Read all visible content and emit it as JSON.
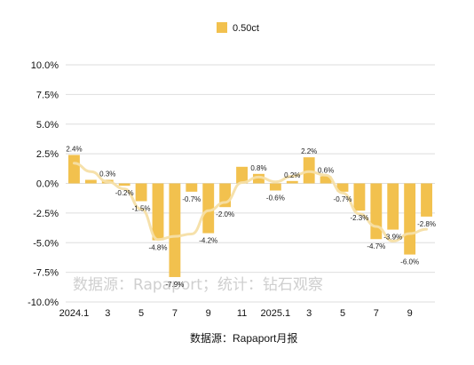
{
  "chart_data": {
    "type": "bar",
    "series": [
      {
        "name": "0.50ct",
        "color": "#f2c14e",
        "values": [
          2.4,
          0.3,
          0.3,
          -0.2,
          -1.5,
          -4.8,
          -7.9,
          -0.7,
          -4.2,
          -2.0,
          1.4,
          0.8,
          -0.6,
          0.2,
          2.2,
          0.6,
          -0.7,
          -2.3,
          -4.7,
          -3.9,
          -6.0,
          -2.8
        ],
        "labels": [
          "2.4%",
          "",
          "0.3%",
          "-0.2%",
          "-1.5%",
          "-4.8%",
          "-7.9%",
          "-0.7%",
          "-4.2%",
          "-2.0%",
          "",
          "0.8%",
          "-0.6%",
          "0.2%",
          "2.2%",
          "0.6%",
          "-0.7%",
          "-2.3%",
          "-4.7%",
          "-3.9%",
          "-6.0%",
          "-2.8%"
        ]
      }
    ],
    "x_tick_labels": [
      "2024.1",
      "",
      "3",
      "",
      "5",
      "",
      "7",
      "",
      "9",
      "",
      "11",
      "",
      "2025.1",
      "",
      "3",
      "",
      "5",
      "",
      "7",
      "",
      "9",
      ""
    ],
    "y_ticks": [
      "10.0%",
      "7.5%",
      "5.0%",
      "2.5%",
      "0.0%",
      "-2.5%",
      "-5.0%",
      "-7.5%",
      "-10.0%"
    ],
    "ylim": [
      -10,
      10
    ],
    "trend_line": true,
    "trend_color": "#f5dfa6",
    "grid": true,
    "legend_position": "top",
    "watermark": "数据源：Rapaport；统计：钻石观察",
    "source_note": "数据源：Rapaport月报"
  }
}
